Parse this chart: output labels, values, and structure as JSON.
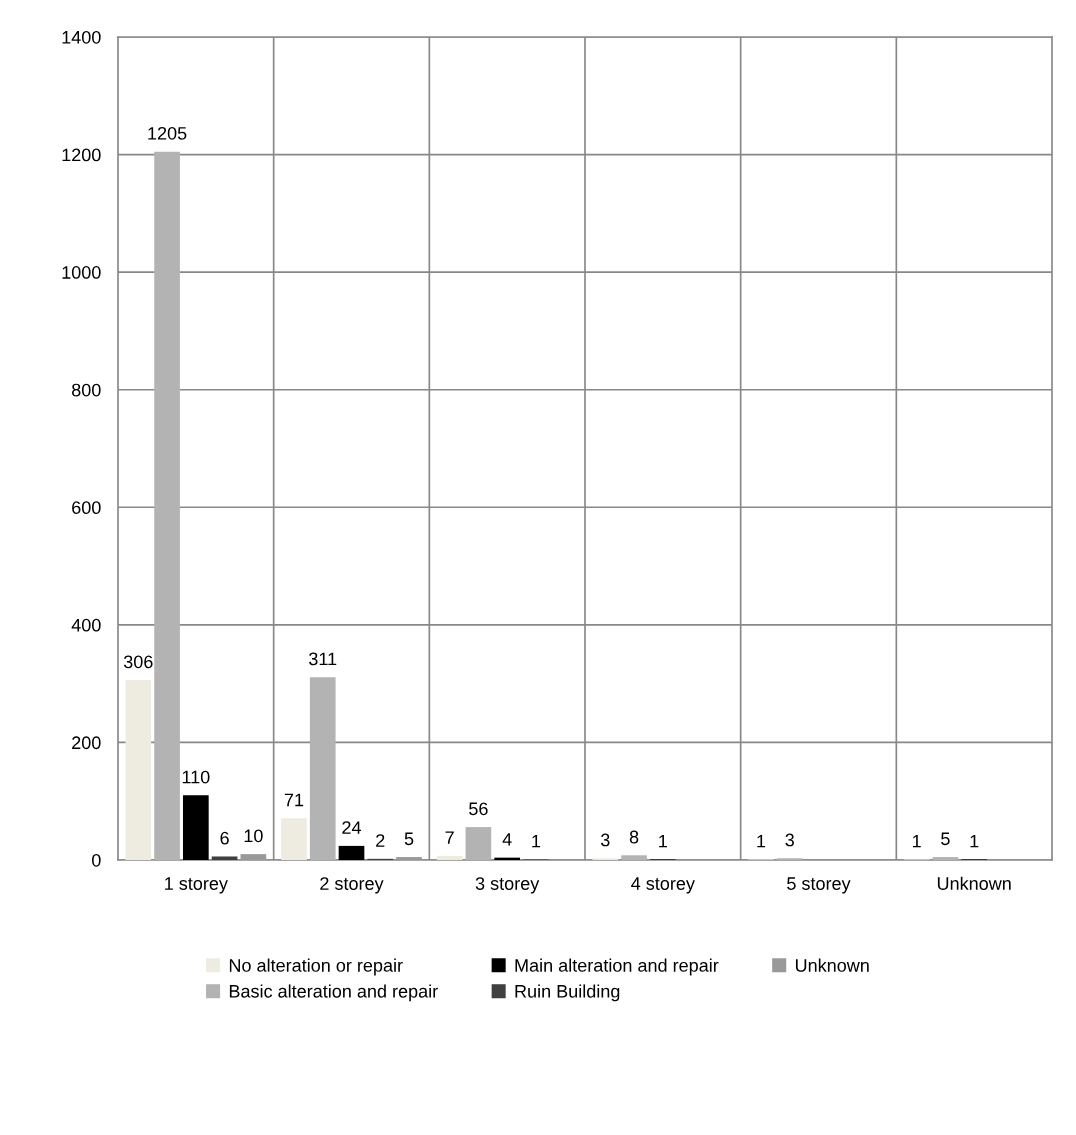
{
  "chart_data": {
    "type": "bar",
    "categories": [
      "1 storey",
      "2 storey",
      "3 storey",
      "4 storey",
      "5 storey",
      "Unknown"
    ],
    "series": [
      {
        "name": "No alteration or repair",
        "color": "#eeece1",
        "values": [
          306,
          71,
          7,
          3,
          1,
          1
        ]
      },
      {
        "name": "Basic alteration and repair",
        "color": "#b3b3b3",
        "values": [
          1205,
          311,
          56,
          8,
          3,
          5
        ]
      },
      {
        "name": "Main alteration and repair",
        "color": "#000000",
        "values": [
          110,
          24,
          4,
          1,
          null,
          1
        ]
      },
      {
        "name": "Ruin Building",
        "color": "#404040",
        "values": [
          6,
          2,
          1,
          null,
          null,
          null
        ]
      },
      {
        "name": "Unknown",
        "color": "#999999",
        "values": [
          10,
          5,
          null,
          null,
          null,
          null
        ]
      }
    ],
    "ylim": [
      0,
      1400
    ],
    "yticks": [
      0,
      200,
      400,
      600,
      800,
      1000,
      1200,
      1400
    ],
    "grid": true,
    "legend": "bottom",
    "data_labels": true
  }
}
